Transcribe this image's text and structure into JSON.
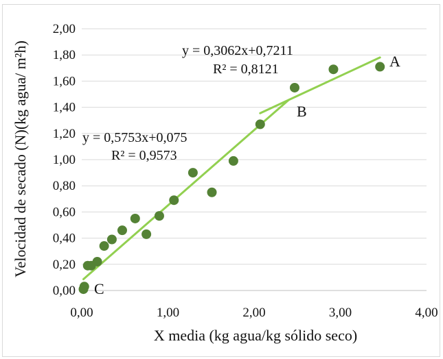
{
  "chart_data": {
    "type": "scatter",
    "xlabel": "X media (kg agua/kg  sólido seco)",
    "ylabel": "Velocidad de secado (N)(kg agua/ m²h)",
    "xlim": [
      0,
      4
    ],
    "ylim": [
      0,
      2
    ],
    "x_ticks": [
      "0,00",
      "1,00",
      "2,00",
      "3,00",
      "4,00"
    ],
    "y_ticks": [
      "0,00",
      "0,20",
      "0,40",
      "0,60",
      "0,80",
      "1,00",
      "1,20",
      "1,40",
      "1,60",
      "1,80",
      "2,00"
    ],
    "grid": "horizontal",
    "point_color": "#548235",
    "line_color": "#92d050",
    "points": [
      {
        "x": 0.02,
        "y": 0.01
      },
      {
        "x": 0.03,
        "y": 0.03
      },
      {
        "x": 0.07,
        "y": 0.19
      },
      {
        "x": 0.11,
        "y": 0.19
      },
      {
        "x": 0.18,
        "y": 0.22
      },
      {
        "x": 0.26,
        "y": 0.34
      },
      {
        "x": 0.35,
        "y": 0.39
      },
      {
        "x": 0.47,
        "y": 0.46
      },
      {
        "x": 0.62,
        "y": 0.55
      },
      {
        "x": 0.75,
        "y": 0.43
      },
      {
        "x": 0.9,
        "y": 0.57
      },
      {
        "x": 1.07,
        "y": 0.69
      },
      {
        "x": 1.29,
        "y": 0.9
      },
      {
        "x": 1.51,
        "y": 0.75
      },
      {
        "x": 1.76,
        "y": 0.99
      },
      {
        "x": 2.07,
        "y": 1.27
      },
      {
        "x": 2.47,
        "y": 1.55
      },
      {
        "x": 2.92,
        "y": 1.69
      },
      {
        "x": 3.46,
        "y": 1.71
      }
    ],
    "trendlines": [
      {
        "equation": "y = 0,5753x+0,075",
        "r2": "R² = 0,9573",
        "slope": 0.5753,
        "intercept": 0.075,
        "x_range": [
          0.02,
          2.4
        ]
      },
      {
        "equation": "y = 0,3062x+0,7211",
        "r2": "R² = 0,8121",
        "slope": 0.3062,
        "intercept": 0.7211,
        "x_range": [
          2.07,
          3.46
        ]
      }
    ],
    "point_labels": [
      "A",
      "B",
      "C"
    ]
  }
}
